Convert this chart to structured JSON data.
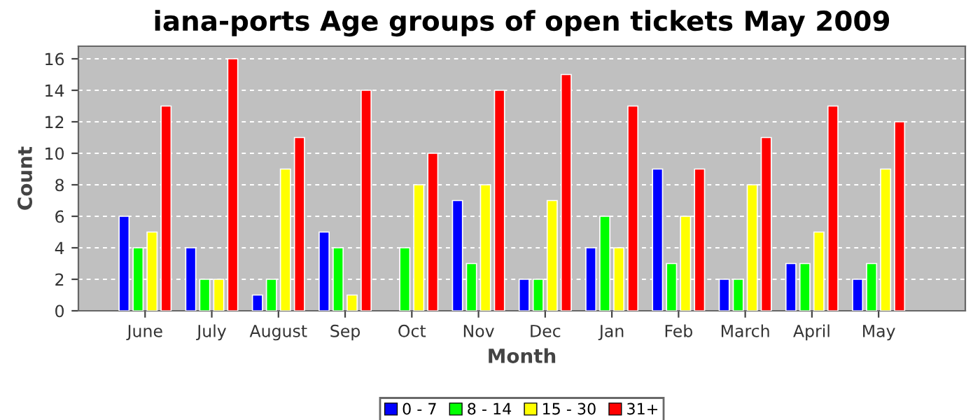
{
  "chart_data": {
    "type": "bar",
    "title": "iana-ports Age groups of open tickets May 2009",
    "xlabel": "Month",
    "ylabel": "Count",
    "categories": [
      "June",
      "July",
      "August",
      "Sep",
      "Oct",
      "Nov",
      "Dec",
      "Jan",
      "Feb",
      "March",
      "April",
      "May"
    ],
    "series": [
      {
        "name": "0 - 7",
        "color": "#0000ff",
        "values": [
          6,
          4,
          1,
          5,
          null,
          7,
          2,
          4,
          9,
          2,
          3,
          2
        ]
      },
      {
        "name": "8 - 14",
        "color": "#00ff00",
        "values": [
          4,
          2,
          2,
          4,
          4,
          3,
          2,
          6,
          3,
          2,
          3,
          3
        ]
      },
      {
        "name": "15 - 30",
        "color": "#ffff00",
        "values": [
          5,
          2,
          9,
          1,
          8,
          8,
          7,
          4,
          6,
          8,
          5,
          9
        ]
      },
      {
        "name": "31+",
        "color": "#ff0000",
        "values": [
          13,
          16,
          11,
          14,
          10,
          14,
          15,
          13,
          9,
          11,
          13,
          12
        ]
      }
    ],
    "ylim": [
      0,
      16.8
    ],
    "yticks": [
      0,
      2,
      4,
      6,
      8,
      10,
      12,
      14,
      16
    ],
    "grid": "y",
    "legend": "bottom"
  }
}
